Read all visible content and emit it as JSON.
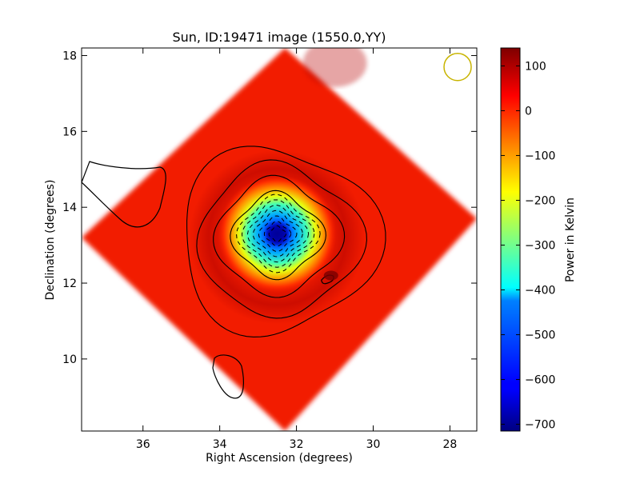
{
  "chart_data": {
    "type": "heatmap",
    "title": "Sun, ID:19471 image (1550.0,YY)",
    "xlabel": "Right Ascension (degrees)",
    "ylabel": "Declination (degrees)",
    "xlim": [
      37.6,
      27.3
    ],
    "ylim": [
      8.1,
      18.2
    ],
    "x_inverted": true,
    "x_ticks": [
      36,
      34,
      32,
      30,
      28
    ],
    "y_ticks": [
      10,
      12,
      14,
      16,
      18
    ],
    "colorbar": {
      "label": "Power in Kelvin",
      "range": [
        -715,
        140
      ],
      "ticks": [
        100,
        0,
        -100,
        -200,
        -300,
        -400,
        -500,
        -600,
        -700
      ],
      "colormap": "jet"
    },
    "image_footprint_corners": [
      [
        32.3,
        18.2
      ],
      [
        27.3,
        13.7
      ],
      [
        32.3,
        8.1
      ],
      [
        37.6,
        13.2
      ]
    ],
    "center_minimum": {
      "ra": 32.5,
      "dec": 13.3,
      "value": -700
    },
    "secondary_minimum": {
      "ra": 31.1,
      "dec": 12.2
    },
    "background_level": 20,
    "contour_color": "#000000",
    "negative_contour_style": "dashed",
    "beam_marker": {
      "ra": 27.8,
      "dec": 17.7,
      "color": "#c8b400"
    },
    "grid": false
  }
}
